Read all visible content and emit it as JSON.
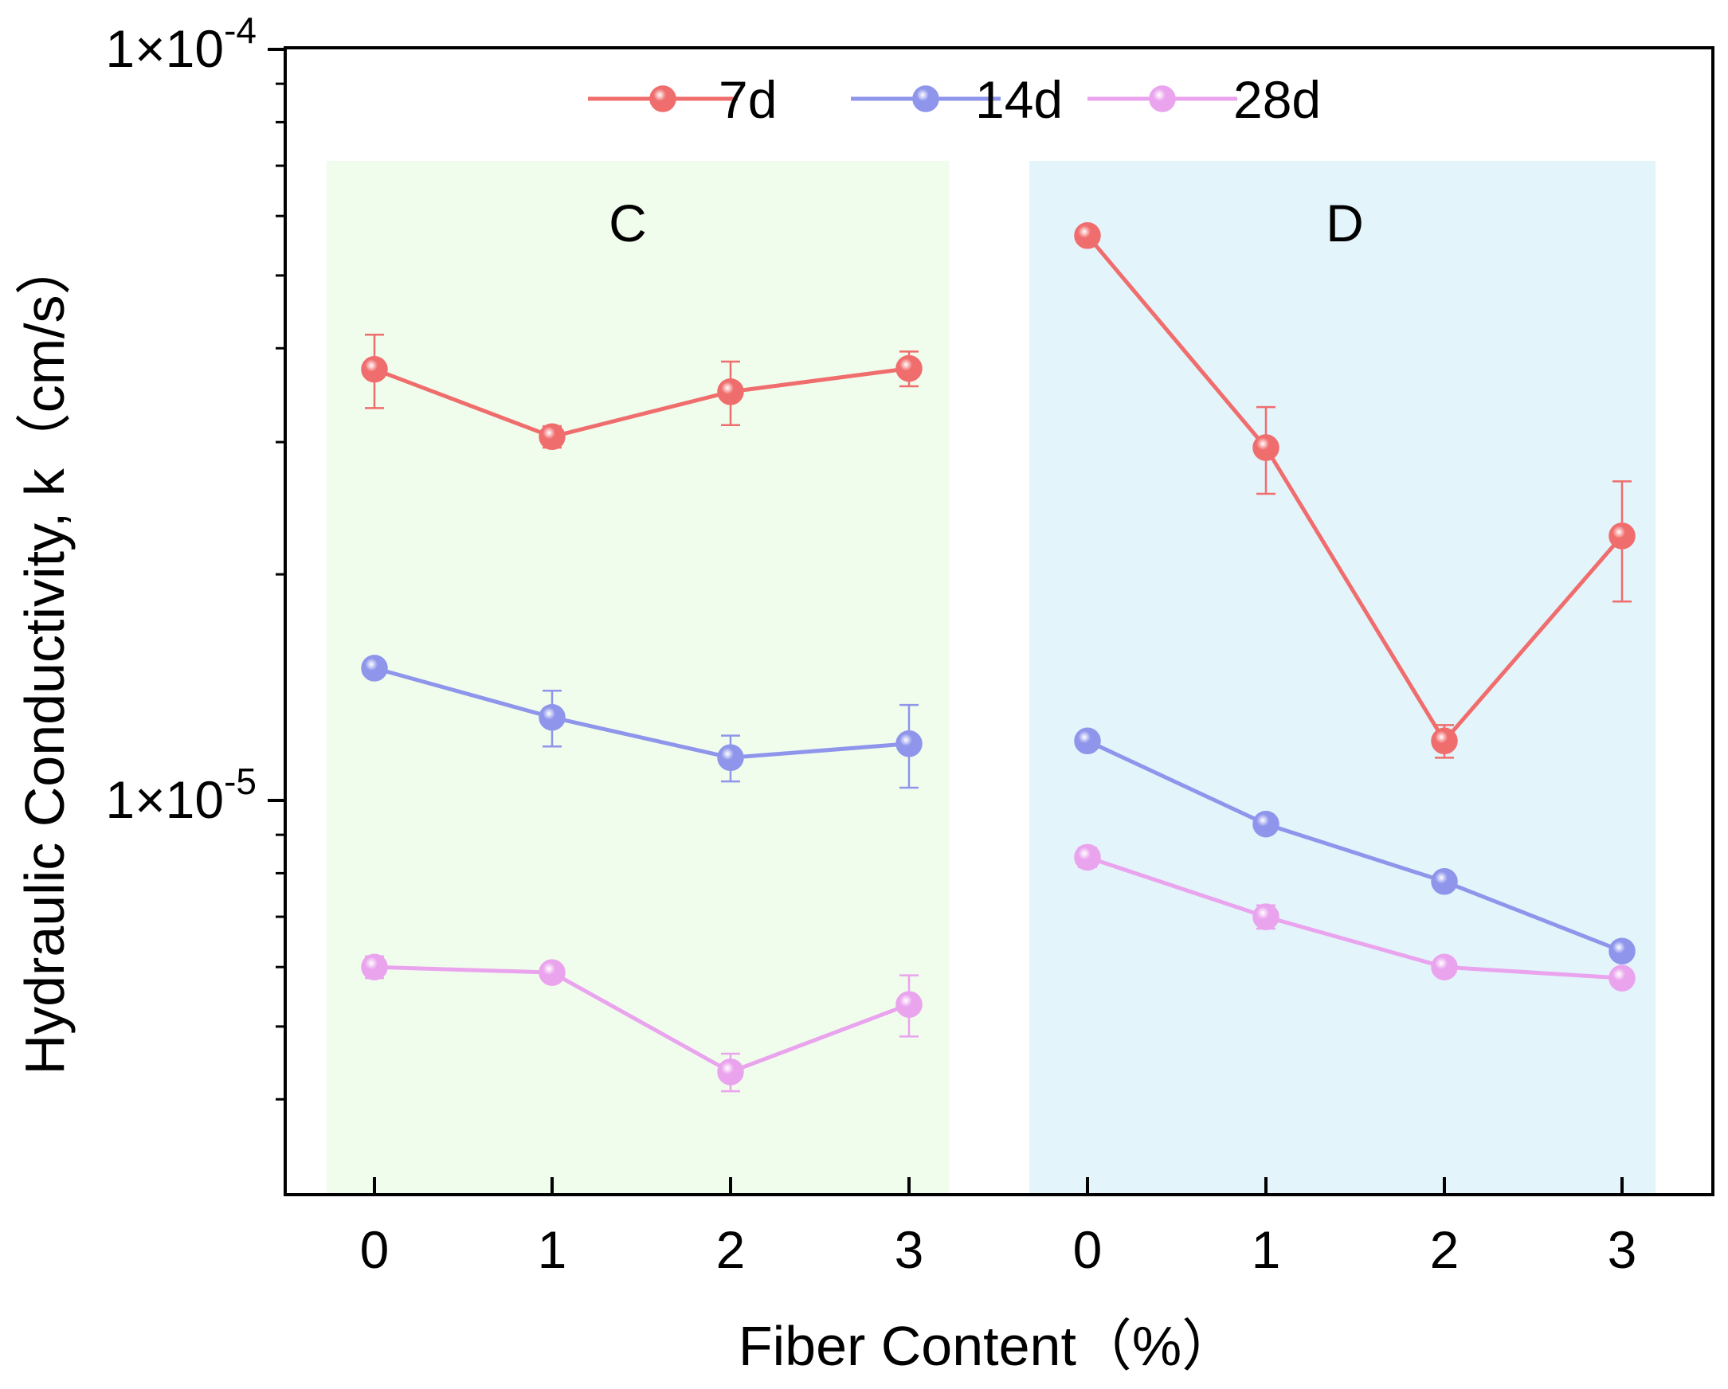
{
  "chart_data": {
    "type": "line",
    "title": "",
    "xlabel": "Fiber Content（%）",
    "ylabel": "Hydraulic Conductivity, k（cm/s）",
    "yscale": "log",
    "ylim": [
      3.2e-06,
      0.0001
    ],
    "yticks": [
      {
        "value": 0.0001,
        "mantissa": "1×10",
        "exp": "-4"
      },
      {
        "value": 1e-05,
        "mantissa": "1×10",
        "exp": "-5"
      }
    ],
    "groups": [
      {
        "name": "C",
        "categories": [
          "0",
          "1",
          "2",
          "3"
        ],
        "shade": "#f0fdec"
      },
      {
        "name": "D",
        "categories": [
          "0",
          "1",
          "2",
          "3"
        ],
        "shade": "#e3f4fb"
      }
    ],
    "series": [
      {
        "name": "7d",
        "color": "#f06d6d",
        "values": [
          [
            3.75e-05,
            3.05e-05,
            3.5e-05,
            3.76e-05
          ],
          [
            5.65e-05,
            2.95e-05,
            1.2e-05,
            2.25e-05
          ]
        ],
        "errors": [
          [
            4.2e-06,
            1e-06,
            3.4e-06,
            2e-06
          ],
          [
            0,
            3.9e-06,
            6e-07,
            4.1e-06
          ]
        ]
      },
      {
        "name": "14d",
        "color": "#8e95eb",
        "values": [
          [
            1.5e-05,
            1.29e-05,
            1.14e-05,
            1.19e-05
          ],
          [
            1.2e-05,
            9.3e-06,
            7.8e-06,
            6.3e-06
          ]
        ],
        "errors": [
          [
            0,
            1.1e-06,
            8e-07,
            1.5e-06
          ],
          [
            0,
            0,
            0,
            0
          ]
        ]
      },
      {
        "name": "28d",
        "color": "#eaa4ee",
        "values": [
          [
            6e-06,
            5.9e-06,
            4.35e-06,
            5.35e-06
          ],
          [
            8.4e-06,
            7e-06,
            6e-06,
            5.8e-06
          ]
        ],
        "errors": [
          [
            2e-07,
            0,
            2.5e-07,
            5e-07
          ],
          [
            2.5e-07,
            2.5e-07,
            0,
            0
          ]
        ]
      }
    ],
    "legend": "top-center",
    "grid": false
  }
}
